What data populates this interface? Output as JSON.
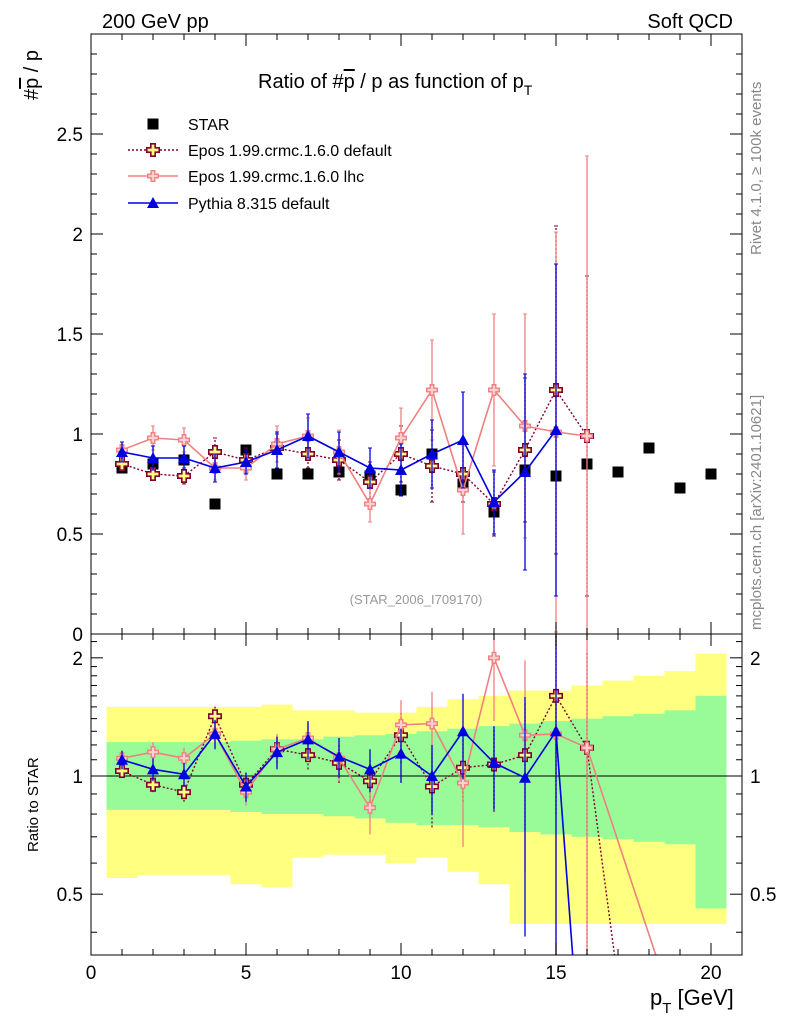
{
  "header": {
    "left": "200 GeV pp",
    "right": "Soft QCD"
  },
  "side_labels": {
    "rivet": "Rivet 4.1.0, ≥ 100k events",
    "mcplots": "mcplots.cern.ch [arXiv:2401.10621]"
  },
  "chart_data": {
    "type": "scatter",
    "title_main": "Ratio of #",
    "title_pbar": "p",
    "title_rest": " / p as function of p",
    "title_sub": "T",
    "analysis_id": "(STAR_2006_I709170)",
    "ylabel_main": "#̅p / p",
    "ylabel_main_hash": "#",
    "ylabel_main_pbar": "p",
    "ylabel_main_rest": " / p",
    "ylabel_ratio": "Ratio to STAR",
    "xlabel_p": "p",
    "xlabel_sub": "T",
    "xlabel_unit": " [GeV]",
    "xlim": [
      0,
      21
    ],
    "ylim_main": [
      0,
      3.0
    ],
    "ylim_ratio": [
      0.35,
      2.3
    ],
    "x_ticks": [
      0,
      5,
      10,
      15,
      20
    ],
    "x_tick_labels": [
      "0",
      "5",
      "10",
      "15",
      "20"
    ],
    "y_ticks_main": [
      0,
      0.5,
      1,
      1.5,
      2,
      2.5
    ],
    "y_tick_labels_main": [
      "0",
      "0.5",
      "1",
      "1.5",
      "2",
      "2.5"
    ],
    "y_ticks_ratio": [
      0.5,
      1,
      2
    ],
    "y_tick_labels_ratio": [
      "0.5",
      "1",
      "2"
    ],
    "series": [
      {
        "name": "STAR",
        "style": "data",
        "color": "#000000",
        "x": [
          1,
          2,
          3,
          4,
          5,
          6,
          7,
          8,
          9,
          10,
          11,
          12,
          13,
          14,
          15,
          16,
          17,
          18,
          19,
          20
        ],
        "y": [
          0.83,
          0.85,
          0.87,
          0.65,
          0.92,
          0.8,
          0.8,
          0.81,
          0.79,
          0.72,
          0.9,
          0.75,
          0.61,
          0.82,
          0.79,
          0.85,
          0.81,
          0.93,
          0.73,
          0.8
        ]
      },
      {
        "name": "Epos 1.99.crmc.1.6.0 default",
        "style": "epos_default",
        "color": "#800033",
        "x": [
          1,
          2,
          3,
          4,
          5,
          6,
          7,
          8,
          9,
          10,
          11,
          12,
          13,
          14,
          15,
          16
        ],
        "y": [
          0.85,
          0.8,
          0.79,
          0.91,
          0.87,
          0.93,
          0.9,
          0.87,
          0.76,
          0.9,
          0.84,
          0.8,
          0.65,
          0.92,
          1.22,
          0.99
        ],
        "err": [
          0.03,
          0.03,
          0.04,
          0.07,
          0.06,
          0.07,
          0.07,
          0.1,
          0.1,
          0.14,
          0.18,
          0.14,
          0.16,
          0.36,
          0.82,
          0.8
        ],
        "ratio": [
          1.03,
          0.95,
          0.91,
          1.42,
          0.95,
          1.17,
          1.13,
          1.08,
          0.97,
          1.27,
          0.94,
          1.05,
          1.07,
          1.13,
          1.6,
          1.18
        ],
        "ratio_err": [
          0.04,
          0.04,
          0.05,
          0.1,
          0.07,
          0.09,
          0.09,
          0.12,
          0.13,
          0.19,
          0.2,
          0.19,
          0.26,
          0.4,
          0.8,
          0.9
        ]
      },
      {
        "name": "Epos 1.99.crmc.1.6.0 lhc",
        "style": "epos_lhc",
        "color": "#f08080",
        "x": [
          1,
          2,
          3,
          4,
          5,
          6,
          7,
          8,
          9,
          10,
          11,
          12,
          13,
          14,
          15,
          16
        ],
        "y": [
          0.92,
          0.98,
          0.97,
          0.83,
          0.83,
          0.95,
          0.99,
          0.91,
          0.65,
          0.98,
          1.22,
          0.72,
          1.22,
          1.04,
          1.01,
          0.99
        ],
        "err": [
          0.04,
          0.06,
          0.06,
          0.06,
          0.06,
          0.09,
          0.09,
          0.11,
          0.09,
          0.15,
          0.25,
          0.22,
          0.38,
          0.56,
          1.0,
          1.4
        ],
        "ratio": [
          1.11,
          1.15,
          1.11,
          1.28,
          0.91,
          1.17,
          1.25,
          1.11,
          0.83,
          1.35,
          1.36,
          0.96,
          2.0,
          1.27,
          1.28,
          1.18
        ],
        "ratio_err": [
          0.05,
          0.07,
          0.07,
          0.09,
          0.07,
          0.11,
          0.11,
          0.14,
          0.12,
          0.21,
          0.28,
          0.3,
          0.62,
          0.7,
          1.2,
          1.6
        ]
      },
      {
        "name": "Pythia 8.315 default",
        "style": "pythia",
        "color": "#0000e0",
        "x": [
          1,
          2,
          3,
          4,
          5,
          6,
          7,
          8,
          9,
          10,
          11,
          12,
          13,
          14,
          15
        ],
        "y": [
          0.91,
          0.88,
          0.88,
          0.83,
          0.86,
          0.92,
          0.99,
          0.91,
          0.83,
          0.82,
          0.9,
          0.97,
          0.66,
          0.81,
          1.02
        ],
        "err": [
          0.05,
          0.06,
          0.06,
          0.07,
          0.06,
          0.09,
          0.11,
          0.1,
          0.1,
          0.13,
          0.17,
          0.24,
          0.16,
          0.49,
          0.83
        ],
        "ratio": [
          1.1,
          1.04,
          1.01,
          1.28,
          0.94,
          1.15,
          1.24,
          1.12,
          1.04,
          1.14,
          1.0,
          1.3,
          1.08,
          0.99,
          1.3
        ],
        "ratio_err": [
          0.06,
          0.07,
          0.07,
          0.11,
          0.08,
          0.11,
          0.14,
          0.13,
          0.13,
          0.18,
          0.2,
          0.32,
          0.26,
          0.6,
          1.05
        ]
      }
    ],
    "ratio_bands": {
      "edges": [
        0.5,
        1.5,
        2.5,
        3.5,
        4.5,
        5.5,
        6.5,
        7.5,
        8.5,
        9.5,
        10.5,
        11.5,
        12.5,
        13.5,
        14.5,
        15.5,
        16.5,
        17.5,
        18.5,
        19.5,
        20.5
      ],
      "inner_color": "#98fb98",
      "outer_color": "#ffff80",
      "inner_lo": [
        0.82,
        0.82,
        0.82,
        0.82,
        0.81,
        0.8,
        0.8,
        0.79,
        0.78,
        0.76,
        0.75,
        0.75,
        0.74,
        0.72,
        0.71,
        0.7,
        0.69,
        0.68,
        0.67,
        0.46
      ],
      "inner_hi": [
        1.22,
        1.22,
        1.22,
        1.22,
        1.23,
        1.24,
        1.24,
        1.26,
        1.27,
        1.28,
        1.3,
        1.32,
        1.34,
        1.36,
        1.38,
        1.4,
        1.42,
        1.44,
        1.47,
        1.6
      ],
      "outer_lo": [
        0.55,
        0.56,
        0.56,
        0.56,
        0.53,
        0.52,
        0.62,
        0.63,
        0.63,
        0.6,
        0.62,
        0.57,
        0.53,
        0.42,
        0.42,
        0.42,
        0.42,
        0.42,
        0.42,
        0.42
      ],
      "outer_hi": [
        1.5,
        1.5,
        1.5,
        1.5,
        1.5,
        1.52,
        1.47,
        1.47,
        1.45,
        1.45,
        1.5,
        1.57,
        1.6,
        1.65,
        1.65,
        1.7,
        1.75,
        1.8,
        1.85,
        2.05
      ]
    }
  }
}
